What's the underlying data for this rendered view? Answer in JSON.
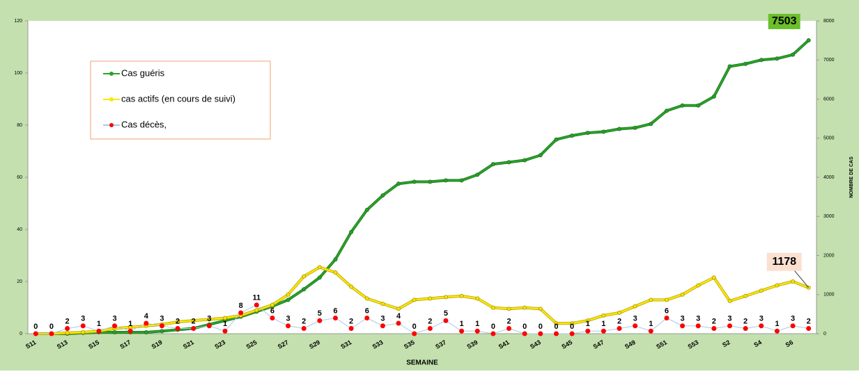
{
  "chart_data": {
    "type": "line",
    "xlabel": "SEMAINE",
    "y2label": "NOMBRE DE CAS",
    "categories": [
      "S11",
      null,
      "S13",
      null,
      "S15",
      null,
      "S17",
      null,
      "S19",
      null,
      "S21",
      null,
      "S23",
      null,
      "S25",
      null,
      "S27",
      null,
      "S29",
      null,
      "S31",
      null,
      "S33",
      null,
      "S35",
      null,
      "S37",
      null,
      "S39",
      null,
      "S41",
      null,
      "S43",
      null,
      "S45",
      null,
      "S47",
      null,
      "S49",
      null,
      "S51",
      null,
      "S53",
      null,
      "S2",
      null,
      "S4",
      null,
      "S6",
      null
    ],
    "ylim": [
      0,
      120
    ],
    "yticks": [
      0,
      20,
      40,
      60,
      80,
      100,
      120
    ],
    "y2lim": [
      0,
      8000
    ],
    "y2ticks": [
      0,
      1000,
      2000,
      3000,
      4000,
      5000,
      6000,
      7000,
      8000
    ],
    "legend": "upper left",
    "series": [
      {
        "name": "Cas guéris",
        "color": "#2ca02c",
        "axis": "y2",
        "values": [
          0,
          0,
          0,
          20,
          35,
          35,
          35,
          35,
          65,
          100,
          135,
          235,
          335,
          435,
          565,
          700,
          865,
          1135,
          1435,
          1900,
          2600,
          3165,
          3535,
          3835,
          3885,
          3885,
          3920,
          3920,
          4065,
          4335,
          4385,
          4435,
          4565,
          4965,
          5065,
          5135,
          5165,
          5235,
          5265,
          5365,
          5700,
          5835,
          5835,
          6065,
          6835,
          6900,
          7000,
          7035,
          7135,
          7503
        ],
        "value_labels": [
          null,
          null,
          null,
          null,
          null,
          null,
          null,
          null,
          null,
          null,
          null,
          null,
          null,
          null,
          null,
          null,
          null,
          null,
          null,
          null,
          null,
          null,
          null,
          null,
          null,
          null,
          null,
          null,
          null,
          null,
          null,
          null,
          null,
          null,
          null,
          null,
          null,
          null,
          null,
          null,
          null,
          null,
          null,
          null,
          null,
          null,
          null,
          null,
          null,
          "7503"
        ]
      },
      {
        "name": "cas actifs (en cours de suivi)",
        "color": "#ffe600",
        "axis": "y2",
        "values": [
          0,
          0,
          20,
          35,
          65,
          135,
          165,
          200,
          235,
          300,
          335,
          365,
          400,
          465,
          600,
          735,
          1000,
          1465,
          1700,
          1565,
          1200,
          900,
          765,
          635,
          865,
          900,
          935,
          965,
          900,
          665,
          635,
          665,
          635,
          265,
          265,
          335,
          465,
          535,
          700,
          865,
          865,
          1000,
          1235,
          1435,
          835,
          965,
          1100,
          1235,
          1335,
          1178
        ],
        "value_labels": [
          null,
          null,
          null,
          null,
          null,
          null,
          null,
          null,
          null,
          null,
          null,
          null,
          null,
          null,
          null,
          null,
          null,
          null,
          null,
          null,
          null,
          null,
          null,
          null,
          null,
          null,
          null,
          null,
          null,
          null,
          null,
          null,
          null,
          null,
          null,
          null,
          null,
          null,
          null,
          null,
          null,
          null,
          null,
          null,
          null,
          null,
          null,
          null,
          null,
          "1178"
        ]
      },
      {
        "name": "Cas décès,",
        "color": "#ff0000",
        "values": [
          0,
          0,
          2,
          3,
          1,
          3,
          1,
          4,
          3,
          2,
          2,
          3,
          1,
          8,
          11,
          6,
          3,
          2,
          5,
          6,
          2,
          6,
          3,
          4,
          0,
          2,
          5,
          1,
          1,
          0,
          2,
          0,
          0,
          0,
          0,
          1,
          1,
          2,
          3,
          1,
          6,
          3,
          3,
          2,
          3,
          2,
          3,
          1,
          3,
          2
        ]
      }
    ]
  }
}
